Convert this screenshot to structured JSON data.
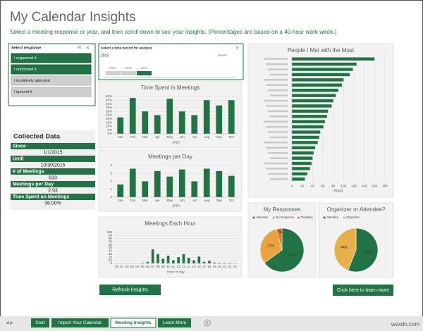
{
  "header": {
    "title": "My Calendar Insights",
    "subtitle": "Select a meeting response or year, and then scroll down to see your insights. (Percentages are based on a 40-hour work week.)"
  },
  "slicer": {
    "title": "Select response",
    "items": [
      {
        "label": "I organized it",
        "selected": true
      },
      {
        "label": "I confirmed it",
        "selected": true
      },
      {
        "label": "I tentatively attended",
        "selected": false
      },
      {
        "label": "I ignored it",
        "selected": false
      }
    ]
  },
  "timeline": {
    "title": "Select a time period for analysis",
    "period": "2015",
    "unit": "YEARS",
    "years": [
      "2013",
      "2014",
      "2015"
    ],
    "selected": 2
  },
  "collected": {
    "title": "Collected Data",
    "rows": [
      {
        "label": "Since",
        "value": "1/1/2015"
      },
      {
        "label": "Until",
        "value": "10/30/2015"
      },
      {
        "label": "# of Meetings",
        "value": "633"
      },
      {
        "label": "Meetings per Day",
        "value": "2.93"
      },
      {
        "label": "Time Spent on Meetings",
        "value": "36.00%"
      }
    ]
  },
  "charts": [
    {
      "type": "bar",
      "title": "Time Spent in Meetings",
      "categories": [
        "Jan",
        "Feb",
        "Mar",
        "Apr",
        "May",
        "Jun",
        "Jul",
        "Aug",
        "Sep",
        "Oct"
      ],
      "values": [
        22,
        48,
        30,
        25,
        47,
        30,
        25,
        45,
        38,
        45
      ],
      "color": "#217346",
      "x_label": "2015",
      "ylim": [
        0,
        50
      ],
      "yticks": [
        {
          "value": 0,
          "label": "0%"
        },
        {
          "value": 5,
          "label": "5%"
        },
        {
          "value": 10,
          "label": "10%"
        },
        {
          "value": 15,
          "label": "15%"
        },
        {
          "value": 20,
          "label": "20%"
        },
        {
          "value": 25,
          "label": "25%"
        },
        {
          "value": 30,
          "label": "30%"
        },
        {
          "value": 35,
          "label": "35%"
        },
        {
          "value": 40,
          "label": "40%"
        },
        {
          "value": 45,
          "label": "45%"
        },
        {
          "value": 50,
          "label": "50%"
        }
      ],
      "grid": true
    },
    {
      "type": "bar",
      "title": "Meetings per Day",
      "categories": [
        "Jan",
        "Feb",
        "Mar",
        "Apr",
        "May",
        "Jun",
        "Jul",
        "Aug",
        "Sep",
        "Oct"
      ],
      "values": [
        1.6,
        3.6,
        2.0,
        3.3,
        2.6,
        3.5,
        2.0,
        3.6,
        3.3,
        2.7
      ],
      "color": "#217346",
      "x_label": "2015",
      "ylim": [
        0,
        4
      ],
      "yticks": [
        0,
        1,
        2,
        3,
        4
      ],
      "grid": true
    },
    {
      "type": "bar",
      "title": "Meetings Each Hour",
      "categories": [
        "00",
        "01",
        "02",
        "03",
        "04",
        "05",
        "06",
        "07",
        "08",
        "09",
        "10",
        "11",
        "12",
        "13",
        "14",
        "15",
        "16",
        "17",
        "18",
        "19",
        "20",
        "21",
        "22",
        "23"
      ],
      "values": [
        0,
        0,
        0,
        0,
        0,
        2,
        5,
        45,
        30,
        15,
        25,
        10,
        20,
        30,
        18,
        10,
        22,
        5,
        8,
        3,
        2,
        2,
        2,
        1
      ],
      "color": "#217346",
      "x_label": "Hour of day",
      "ylim": [
        0,
        100
      ],
      "yticks": [
        0,
        10,
        20,
        30,
        40,
        50,
        60,
        70,
        80,
        90,
        100
      ],
      "grid": true
    },
    {
      "type": "hbar",
      "title": "People I Met with the Most",
      "categories": [
        null,
        null,
        null,
        null,
        null,
        null,
        null,
        null,
        null,
        null,
        null,
        null,
        null,
        null,
        null,
        null,
        null,
        null,
        null,
        null,
        null,
        null,
        null,
        null
      ],
      "values": [
        160,
        125,
        118,
        112,
        100,
        97,
        90,
        85,
        80,
        77,
        70,
        68,
        64,
        61,
        55,
        53,
        50,
        45,
        42,
        40,
        38,
        35,
        30,
        25
      ],
      "color": "#217346",
      "x_label": "Hours",
      "xlim": [
        0,
        180
      ],
      "xticks": [
        0,
        20,
        40,
        60,
        80,
        100,
        120,
        140,
        160,
        180
      ],
      "grid": true
    },
    {
      "type": "pie",
      "title": "My Responses",
      "labels": [
        "Attendee",
        "No Response",
        "Tentative"
      ],
      "colors": [
        "#217346",
        "#e8a33d",
        "#e0702a"
      ],
      "values": [
        65,
        31,
        4
      ],
      "value_labels": [
        "65%",
        "31%",
        "4%"
      ]
    },
    {
      "type": "pie",
      "title": "Organizer or Attendee?",
      "labels": [
        "Attendee",
        "Organizer"
      ],
      "colors": [
        "#217346",
        "#e8b04a"
      ],
      "values": [
        56,
        44
      ],
      "value_labels": [
        "56%",
        "44%"
      ]
    }
  ],
  "buttons": [
    "Refresh Insights",
    "Click here to learn more"
  ],
  "tabs": {
    "items": [
      "Start",
      "Import Your Calendar",
      "Meeting Insights",
      "Learn More"
    ],
    "active": 2
  },
  "watermark": "wsxdn.com"
}
